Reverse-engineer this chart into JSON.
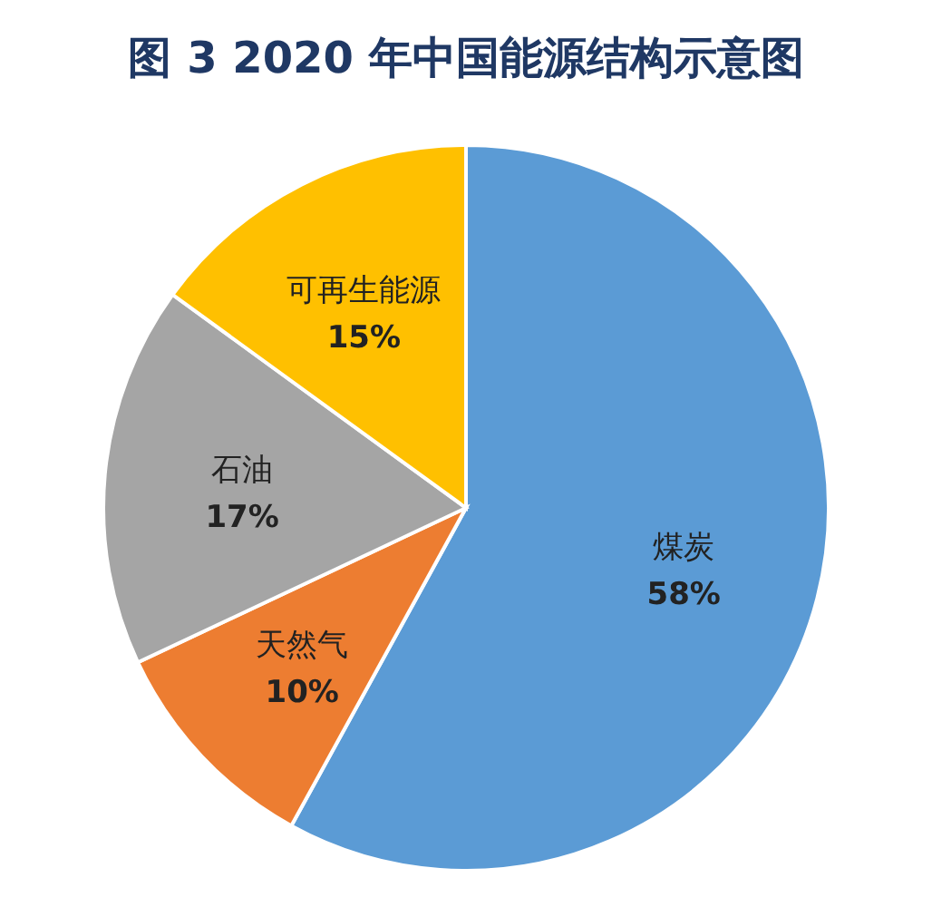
{
  "chart_data": {
    "type": "pie",
    "title": "图 3 2020 年中国能源结构示意图",
    "categories": [
      "煤炭",
      "天然气",
      "石油",
      "可再生能源"
    ],
    "values": [
      58,
      10,
      17,
      15
    ],
    "value_labels": [
      "58%",
      "10%",
      "17%",
      "15%"
    ],
    "colors": [
      "#5b9bd5",
      "#ed7d31",
      "#a5a5a5",
      "#ffc000"
    ]
  }
}
